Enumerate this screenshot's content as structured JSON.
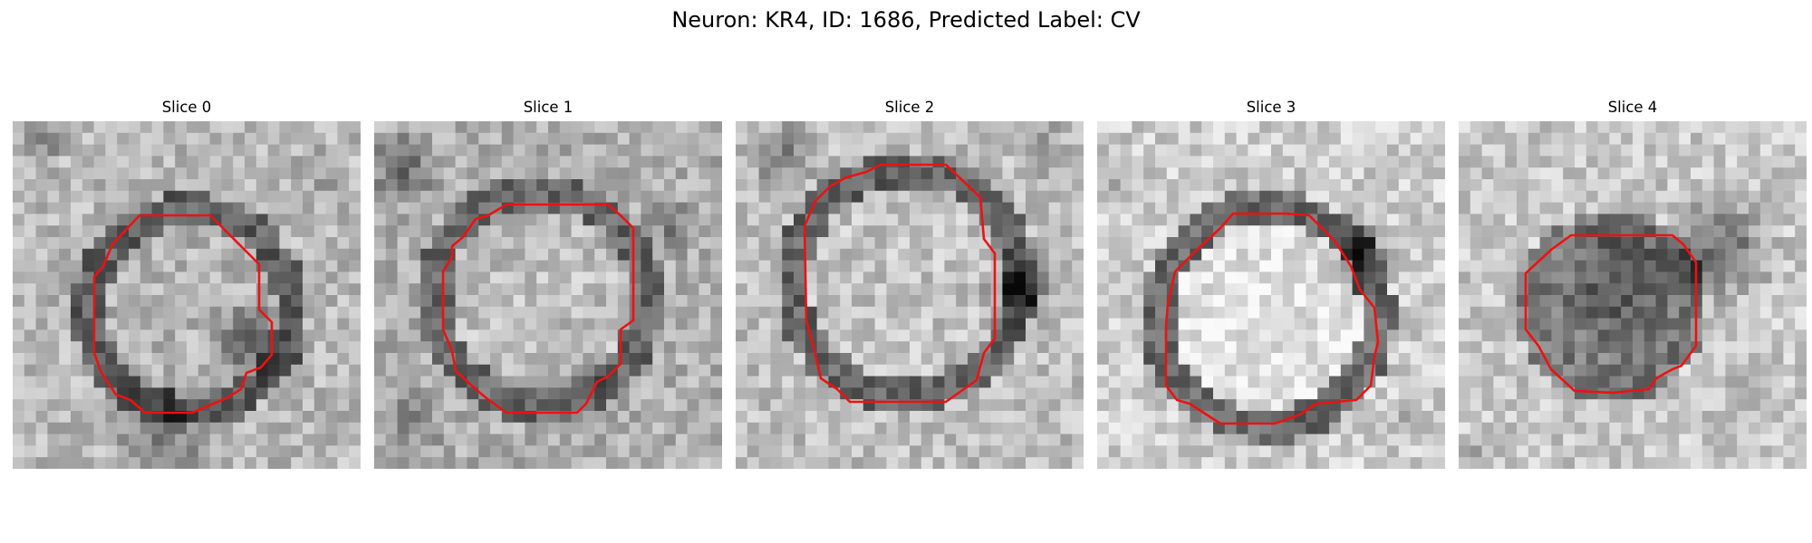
{
  "figure": {
    "title": "Neuron: KR4, ID: 1686, Predicted Label: CV"
  },
  "panels": [
    {
      "title": "Slice 0"
    },
    {
      "title": "Slice 1"
    },
    {
      "title": "Slice 2"
    },
    {
      "title": "Slice 3"
    },
    {
      "title": "Slice 4"
    }
  ],
  "colors": {
    "background": "#ffffff",
    "contour": "#ee1111",
    "image_colormap": "grayscale"
  }
}
